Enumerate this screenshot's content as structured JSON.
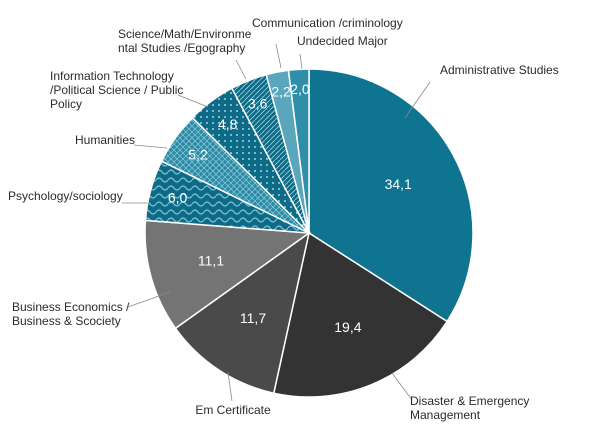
{
  "chart_data": {
    "type": "pie",
    "start_angle_deg": 0,
    "direction": "clockwise",
    "slices": [
      {
        "label": "Administrative Studies",
        "label_lines": [
          "Administrative Studies"
        ],
        "value": 34.1,
        "value_text": "34,1",
        "color": "#0e7490",
        "pattern": "solid"
      },
      {
        "label": "Disaster & Emergency Management",
        "label_lines": [
          "Disaster & Emergency",
          "Management"
        ],
        "value": 19.4,
        "value_text": "19,4",
        "color": "#333333",
        "pattern": "solid"
      },
      {
        "label": "Em Certificate",
        "label_lines": [
          "Em Certificate"
        ],
        "value": 11.7,
        "value_text": "11,7",
        "color": "#4a4a4a",
        "pattern": "solid"
      },
      {
        "label": "Business Economics / Business & Scociety",
        "label_lines": [
          "Business Economics /",
          "Business & Scociety"
        ],
        "value": 11.1,
        "value_text": "11,1",
        "color": "#747474",
        "pattern": "solid"
      },
      {
        "label": "Psychology/sociology",
        "label_lines": [
          "Psychology/sociology"
        ],
        "value": 6.0,
        "value_text": "6,0",
        "color": "#0e6b88",
        "pattern": "waves"
      },
      {
        "label": "Humanities",
        "label_lines": [
          "Humanities"
        ],
        "value": 5.2,
        "value_text": "5,2",
        "color": "#2d8aa5",
        "pattern": "crosshatch"
      },
      {
        "label": "Information Technology /Political Science / Public Policy",
        "label_lines": [
          "Information Technology",
          "/Political Science / Public",
          "Policy"
        ],
        "value": 4.8,
        "value_text": "4,8",
        "color": "#0e6b88",
        "pattern": "dots"
      },
      {
        "label": "Science/Math/Environmental Studies /Egography",
        "label_lines": [
          "Science/Math/Environme",
          "ntal Studies /Egography"
        ],
        "value": 3.6,
        "value_text": "3,6",
        "color": "#0e6b88",
        "pattern": "diagonal"
      },
      {
        "label": "Communication /criminology",
        "label_lines": [
          "Communication /criminology"
        ],
        "value": 2.2,
        "value_text": "2,2",
        "color": "#5aa6bd",
        "pattern": "solid"
      },
      {
        "label": "Undecided Major",
        "label_lines": [
          "Undecided Major"
        ],
        "value": 2.0,
        "value_text": "2,0",
        "color": "#2f8ea8",
        "pattern": "solid"
      }
    ]
  }
}
